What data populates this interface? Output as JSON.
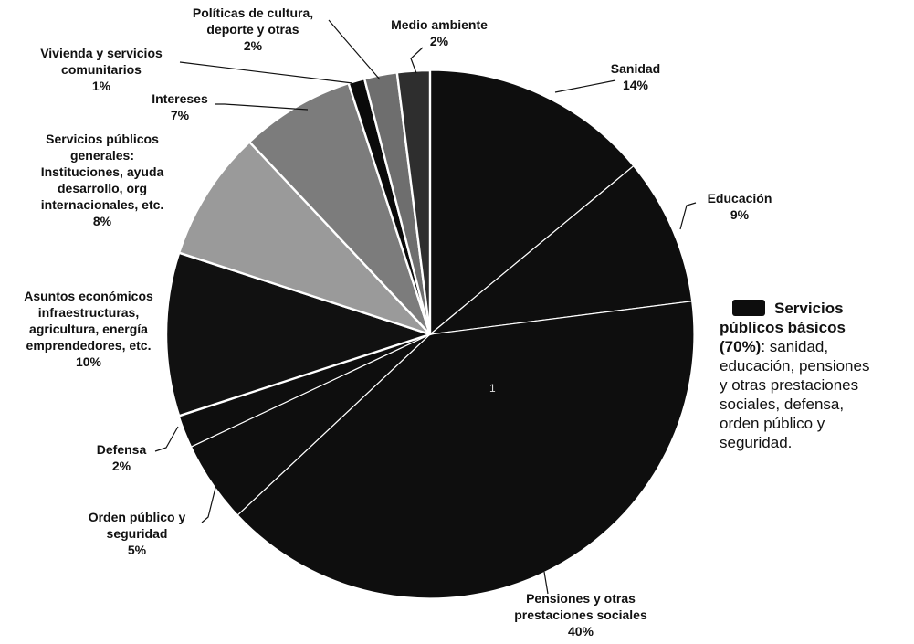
{
  "chart_data": {
    "type": "pie",
    "slices": [
      {
        "id": "sanidad",
        "lines": [
          "Sanidad",
          "14%"
        ],
        "value": 14,
        "color": "#0e0e0e",
        "basic": true
      },
      {
        "id": "educacion",
        "lines": [
          "Educación",
          "9%"
        ],
        "value": 9,
        "color": "#0e0e0e",
        "basic": true
      },
      {
        "id": "pensiones",
        "lines": [
          "Pensiones y otras",
          "prestaciones sociales",
          "40%"
        ],
        "value": 40,
        "color": "#0e0e0e",
        "basic": true
      },
      {
        "id": "orden",
        "lines": [
          "Orden público y",
          "seguridad",
          "5%"
        ],
        "value": 5,
        "color": "#0e0e0e",
        "basic": true
      },
      {
        "id": "defensa",
        "lines": [
          "Defensa",
          "2%"
        ],
        "value": 2,
        "color": "#0e0e0e",
        "basic": true
      },
      {
        "id": "asuntos",
        "lines": [
          "Asuntos económicos",
          "infraestructuras,",
          "agricultura, energía",
          "emprendedores, etc.",
          "10%"
        ],
        "value": 10,
        "color": "#111111",
        "basic": false
      },
      {
        "id": "servicios",
        "lines": [
          "Servicios públicos",
          "generales:",
          "Instituciones, ayuda",
          "desarrollo, org",
          "internacionales, etc.",
          "8%"
        ],
        "value": 8,
        "color": "#9a9a9a",
        "basic": false
      },
      {
        "id": "intereses",
        "lines": [
          "Intereses",
          "7%"
        ],
        "value": 7,
        "color": "#7c7c7c",
        "basic": false
      },
      {
        "id": "vivienda",
        "lines": [
          "Vivienda y  servicios",
          "comunitarios",
          "1%"
        ],
        "value": 1,
        "color": "#0a0a0a",
        "basic": false
      },
      {
        "id": "cultura",
        "lines": [
          "Políticas de cultura,",
          "deporte y otras",
          "2%"
        ],
        "value": 2,
        "color": "#6e6e6e",
        "basic": false
      },
      {
        "id": "medio",
        "lines": [
          "Medio ambiente",
          "2%"
        ],
        "value": 2,
        "color": "#2e2e2e",
        "basic": false
      }
    ],
    "legend": {
      "swatch_color": "#0d0d0d",
      "title_lines": [
        "Servicios",
        "públicos básicos"
      ],
      "pct": "(70%)",
      "desc_first": ": sanidad,",
      "desc_lines": [
        "educación, pensiones",
        "y otras prestaciones",
        "sociales, defensa,",
        "orden público y",
        "seguridad."
      ],
      "placement": "right"
    },
    "center_mark": "1"
  }
}
